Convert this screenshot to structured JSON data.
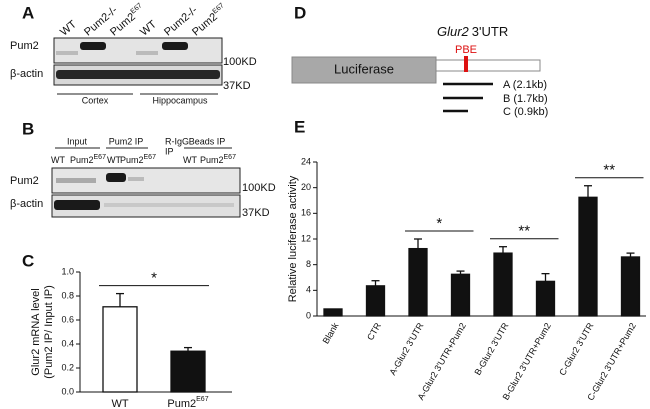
{
  "panel_labels": [
    "A",
    "B",
    "C",
    "D",
    "E"
  ],
  "blot_a": {
    "lanes": [
      {
        "text": "WT"
      },
      {
        "text": "Pum2-/-"
      },
      {
        "text": "Pum2",
        "sup": "E67"
      },
      {
        "text": "WT"
      },
      {
        "text": "Pum2-/-"
      },
      {
        "text": "Pum2",
        "sup": "E67"
      }
    ],
    "rows": [
      "Pum2",
      "β-actin"
    ],
    "markers": [
      "100KD",
      "37KD"
    ],
    "groups": [
      "Cortex",
      "Hippocampus"
    ]
  },
  "blot_b": {
    "groups": [
      [
        "Input"
      ],
      [
        "Pum2 IP"
      ],
      [
        "R-IgG",
        "IP"
      ],
      [
        "Beads IP"
      ]
    ],
    "lanes": [
      {
        "text": "WT"
      },
      {
        "text": "Pum2",
        "sup": "E67"
      },
      {
        "text": "WT"
      },
      {
        "text": "Pum2",
        "sup": "E67"
      },
      {
        "text": "WT"
      },
      {
        "text": "Pum2",
        "sup": "E67"
      }
    ],
    "rows": [
      "Pum2",
      "β-actin"
    ],
    "markers": [
      "100KD",
      "37KD"
    ]
  },
  "diagram_d": {
    "title": {
      "italic": "Glur2",
      "text": "3'UTR"
    },
    "site": "PBE",
    "box": "Luciferase",
    "fragments": [
      "A (2.1kb)",
      "B (1.7kb)",
      "C (0.9kb)"
    ]
  },
  "chart_data": [
    {
      "type": "bar",
      "y_label": [
        "Glur2 mRNA level",
        "(Pum2 IP/ Input IP)"
      ],
      "categories": [
        {
          "text": "WT"
        },
        {
          "text": "Pum2",
          "sup": "E67"
        }
      ],
      "values": [
        0.71,
        0.34
      ],
      "errors": [
        0.11,
        0.03
      ],
      "colors": [
        "#ffffff",
        "#111111"
      ],
      "ylim": [
        0,
        1
      ],
      "yticks": [
        {
          "value": 0,
          "label": "0.0"
        },
        0.2,
        0.4,
        0.6,
        0.8,
        {
          "value": 1,
          "label": "1.0"
        }
      ],
      "significance": [
        {
          "label": "*",
          "between": [
            0,
            1
          ]
        }
      ]
    },
    {
      "type": "bar",
      "y_label": [
        "Relative luciferase activity"
      ],
      "categories": [
        {
          "text": "Blank"
        },
        {
          "text": "CTR"
        },
        {
          "text": "A-Glur2 3'UTR"
        },
        {
          "text": "A-Glur2 3'UTR+Pum2"
        },
        {
          "text": "B-Glur2 3'UTR"
        },
        {
          "text": "B-Glur2 3'UTR+Pum2"
        },
        {
          "text": "C-Glur2 3'UTR"
        },
        {
          "text": "C-Glur2 3'UTR+Pum2"
        }
      ],
      "values": [
        1.1,
        4.7,
        10.5,
        6.5,
        9.8,
        5.4,
        18.5,
        9.2
      ],
      "errors": [
        0,
        0.8,
        1.5,
        0.5,
        1.0,
        1.2,
        1.8,
        0.6
      ],
      "colors": [
        "#111111",
        "#111111",
        "#111111",
        "#111111",
        "#111111",
        "#111111",
        "#111111",
        "#111111"
      ],
      "ylim": [
        0,
        24
      ],
      "yticks": [
        0,
        4,
        8,
        12,
        16,
        20,
        24
      ],
      "significance": [
        {
          "label": "*",
          "between": [
            2,
            3
          ]
        },
        {
          "label": "**",
          "between": [
            4,
            5
          ]
        },
        {
          "label": "**",
          "between": [
            6,
            7
          ]
        }
      ]
    }
  ]
}
